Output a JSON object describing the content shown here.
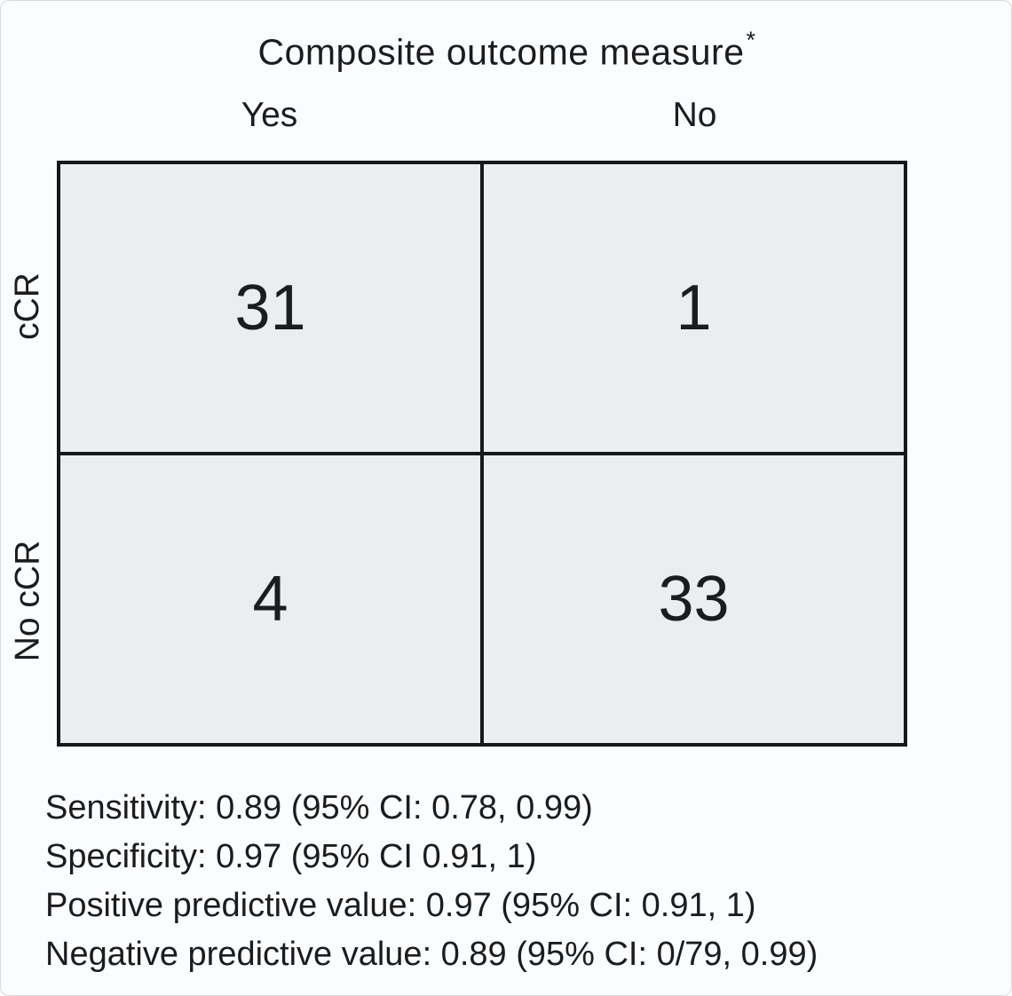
{
  "figure": {
    "title": {
      "text": "Composite outcome measure",
      "superscript": "*"
    },
    "column_headers": [
      "Yes",
      "No"
    ],
    "row_labels": [
      "cCR",
      "No cCR"
    ],
    "cells": [
      [
        "31",
        "1"
      ],
      [
        "4",
        "33"
      ]
    ],
    "stats": [
      "Sensitivity: 0.89 (95% CI: 0.78, 0.99)",
      "Specificity: 0.97 (95% CI 0.91, 1)",
      "Positive predictive value: 0.97 (95% CI: 0.91, 1)",
      "Negative predictive value: 0.89 (95% CI: 0/79, 0.99)"
    ]
  },
  "chart_data": {
    "type": "table",
    "title": "Composite outcome measure*",
    "columns": [
      "Yes",
      "No"
    ],
    "rows": [
      "cCR",
      "No cCR"
    ],
    "values": [
      [
        31,
        1
      ],
      [
        4,
        33
      ]
    ],
    "annotations": [
      "Sensitivity: 0.89 (95% CI: 0.78, 0.99)",
      "Specificity: 0.97 (95% CI 0.91, 1)",
      "Positive predictive value: 0.97 (95% CI: 0.91, 1)",
      "Negative predictive value: 0.89 (95% CI: 0/79, 0.99)"
    ],
    "layout": {
      "row_labels_rotated": true,
      "legend": "none",
      "grid": "2x2 contingency table"
    },
    "colors": {
      "cell_fill": "#ebedee",
      "table_border": "#17181a",
      "background": "#fbfcfd",
      "text": "#1b1c1e"
    }
  }
}
